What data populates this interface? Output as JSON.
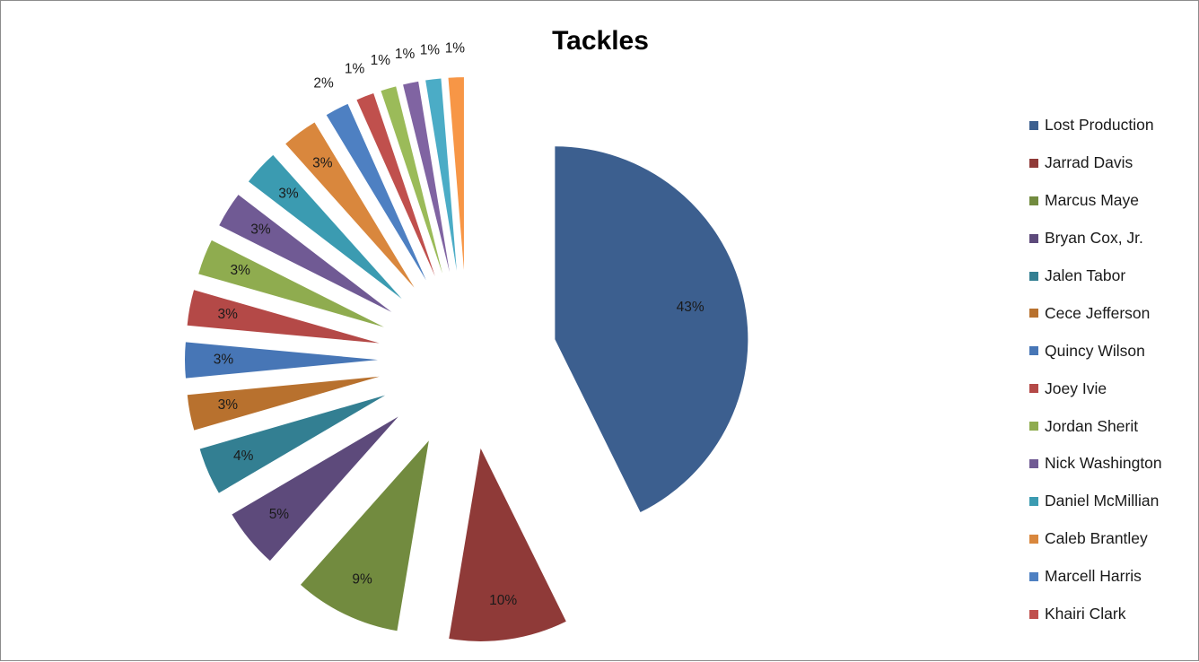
{
  "chart_data": {
    "type": "pie",
    "title": "Tackles",
    "exploded": true,
    "legend_placement": "right",
    "slices": [
      {
        "name": "Lost Production",
        "percent": 43,
        "label": "43%",
        "color": "#3c5f8f"
      },
      {
        "name": "Jarrad Davis",
        "percent": 10,
        "label": "10%",
        "color": "#8f3a38"
      },
      {
        "name": "Marcus Maye",
        "percent": 9,
        "label": "9%",
        "color": "#728b3f"
      },
      {
        "name": "Bryan Cox, Jr.",
        "percent": 5,
        "label": "5%",
        "color": "#5d4a7b"
      },
      {
        "name": "Jalen Tabor",
        "percent": 4,
        "label": "4%",
        "color": "#337f92"
      },
      {
        "name": "Cece Jefferson",
        "percent": 3,
        "label": "3%",
        "color": "#b8712e"
      },
      {
        "name": "Quincy Wilson",
        "percent": 3,
        "label": "3%",
        "color": "#4776b6"
      },
      {
        "name": "Joey Ivie",
        "percent": 3,
        "label": "3%",
        "color": "#b44947"
      },
      {
        "name": "Jordan Sherit",
        "percent": 3,
        "label": "3%",
        "color": "#8fac4f"
      },
      {
        "name": "Nick Washington",
        "percent": 3,
        "label": "3%",
        "color": "#705a94"
      },
      {
        "name": "Daniel McMillian",
        "percent": 3,
        "label": "3%",
        "color": "#3b9bb1"
      },
      {
        "name": "Caleb Brantley",
        "percent": 3,
        "label": "3%",
        "color": "#d9873d"
      },
      {
        "name": "Marcell Harris",
        "percent": 2,
        "label": "2%",
        "color": "#4e80c2"
      },
      {
        "name": "Khairi Clark",
        "percent": 1.5,
        "label": "1%",
        "color": "#c0504d"
      },
      {
        "name": "",
        "percent": 1.3,
        "label": "1%",
        "color": "#9bbb59"
      },
      {
        "name": "",
        "percent": 1.3,
        "label": "1%",
        "color": "#8064a2"
      },
      {
        "name": "",
        "percent": 1.3,
        "label": "1%",
        "color": "#4bacc6"
      },
      {
        "name": "",
        "percent": 1.3,
        "label": "1%",
        "color": "#f79646"
      }
    ]
  }
}
